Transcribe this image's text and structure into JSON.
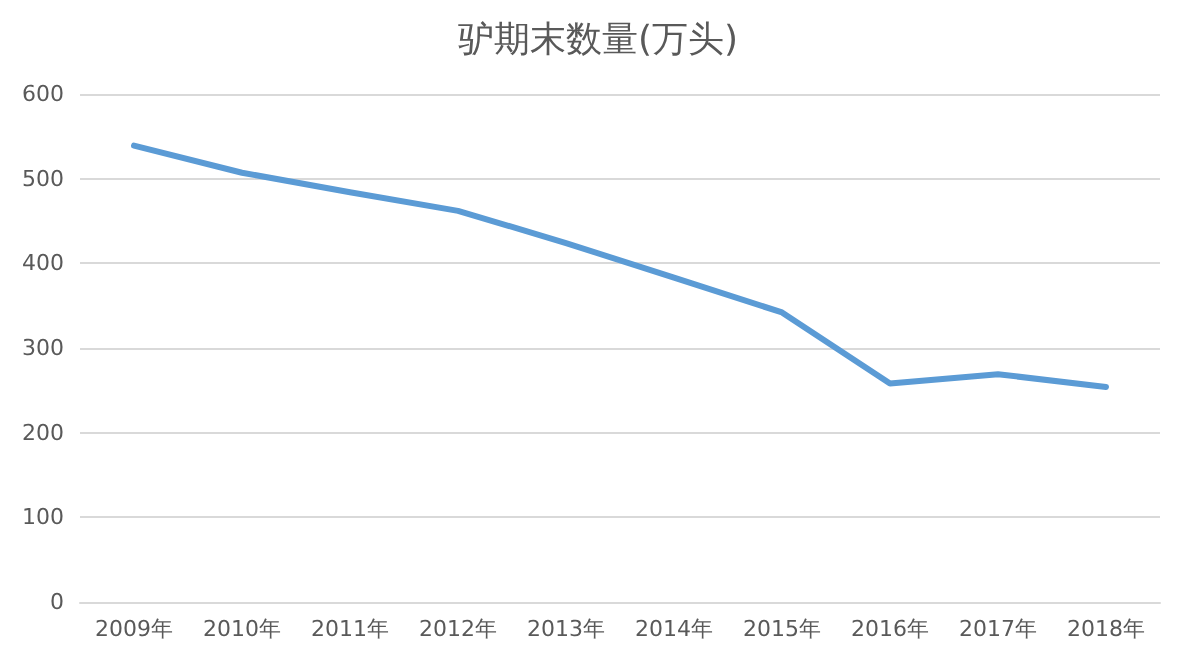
{
  "chart_data": {
    "type": "line",
    "title": "驴期末数量(万头)",
    "categories": [
      "2009年",
      "2010年",
      "2011年",
      "2012年",
      "2013年",
      "2014年",
      "2015年",
      "2016年",
      "2017年",
      "2018年"
    ],
    "series": [
      {
        "color": "#5b9bd5",
        "values": [
          539,
          507,
          484,
          462,
          424,
          383,
          342,
          258,
          269,
          254
        ]
      }
    ],
    "ylim": [
      0,
      600
    ],
    "yticks": [
      0,
      100,
      200,
      300,
      400,
      500,
      600
    ],
    "grid": "y",
    "marker": "none",
    "line_style": "solid"
  }
}
